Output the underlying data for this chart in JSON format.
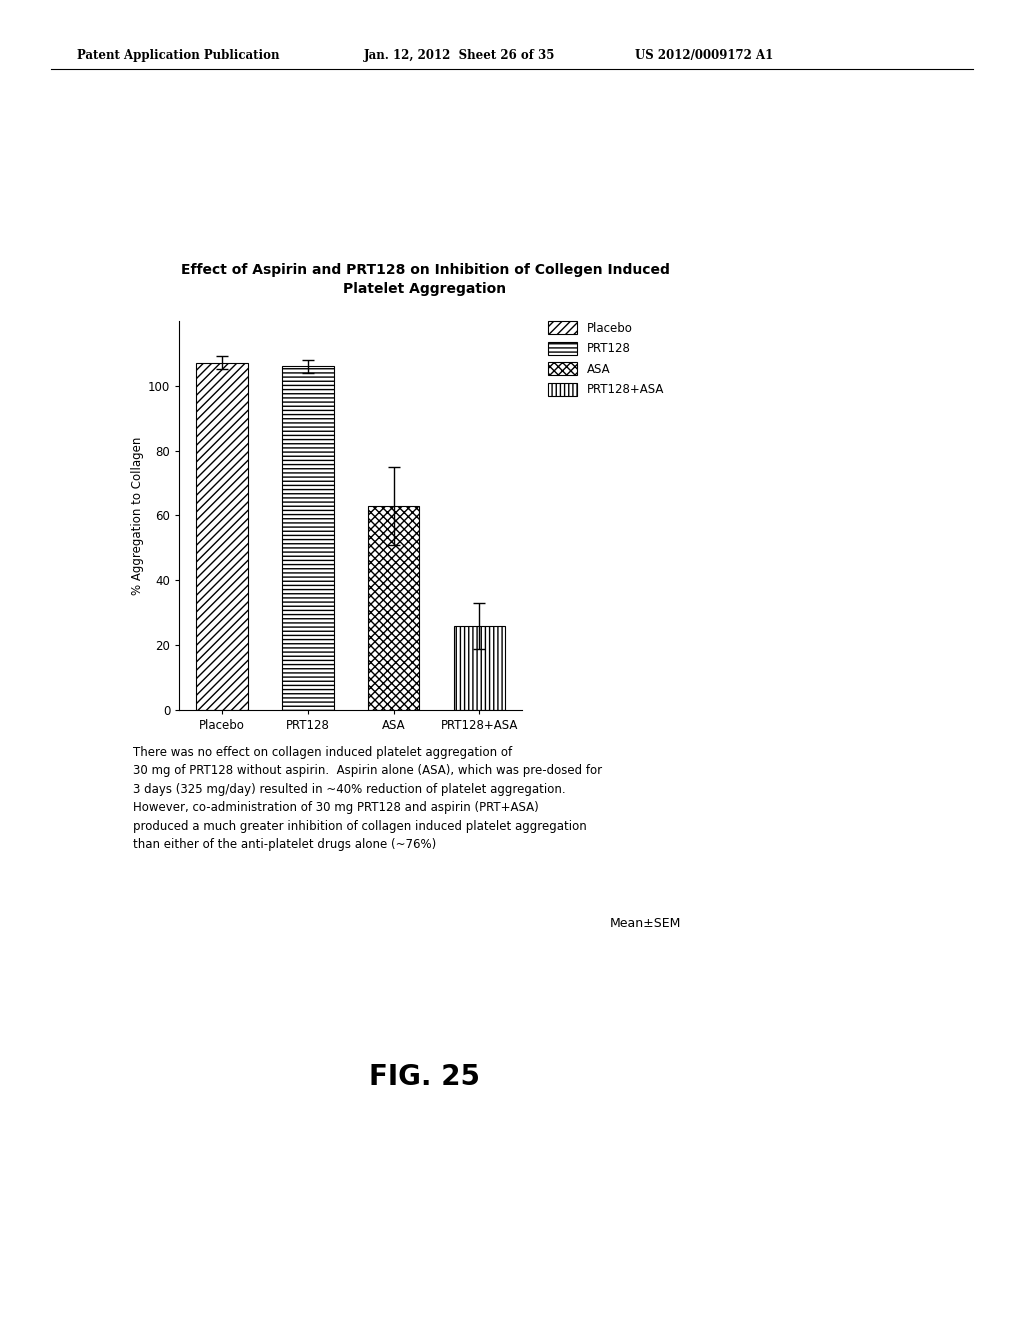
{
  "title_line1": "Effect of Aspirin and PRT128 on Inhibition of Collegen Induced",
  "title_line2": "Platelet Aggregation",
  "categories": [
    "Placebo",
    "PRT128",
    "ASA",
    "PRT128+ASA"
  ],
  "values": [
    107,
    106,
    63,
    26
  ],
  "errors": [
    2,
    2,
    12,
    7
  ],
  "ylabel": "% Aggregation to Collagen",
  "ylim": [
    0,
    120
  ],
  "yticks": [
    0,
    20,
    40,
    60,
    80,
    100
  ],
  "legend_labels": [
    "Placebo",
    "PRT128",
    "ASA",
    "PRT128+ASA"
  ],
  "header_left": "Patent Application Publication",
  "header_mid": "Jan. 12, 2012  Sheet 26 of 35",
  "header_right": "US 2012/0009172 A1",
  "annotation_line1": "There was no effect on collagen induced platelet aggregation of",
  "annotation_line2": "30 mg of PRT128 without aspirin.  Aspirin alone (ASA), which was pre-dosed for",
  "annotation_line3": "3 days (325 mg/day) resulted in ~40% reduction of platelet aggregation.",
  "annotation_line4": "However, co-administration of 30 mg PRT128 and aspirin (PRT+ASA)",
  "annotation_line5": "produced a much greater inhibition of collagen induced platelet aggregation",
  "annotation_line6": "than either of the anti-platelet drugs alone (~76%)",
  "mean_sem_label": "Mean±SEM",
  "fig_label": "FIG. 25",
  "background_color": "#ffffff"
}
